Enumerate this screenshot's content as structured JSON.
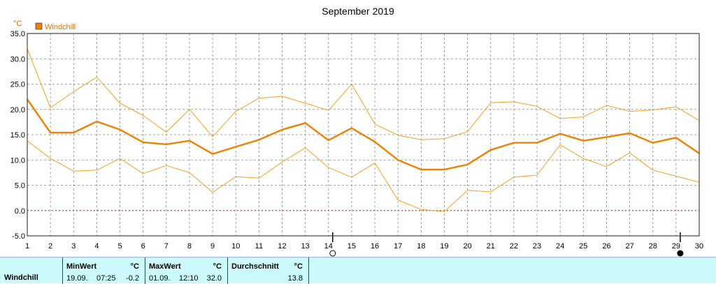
{
  "chart_data": {
    "type": "line",
    "title": "September 2019",
    "ylabel": "°C",
    "legend": [
      "Windchill"
    ],
    "ylim": [
      -5,
      35
    ],
    "yticks": [
      "-5.0",
      "0.0",
      "5.0",
      "10.0",
      "15.0",
      "20.0",
      "25.0",
      "30.0",
      "35.0"
    ],
    "x": [
      "1",
      "2",
      "3",
      "4",
      "5",
      "6",
      "7",
      "8",
      "9",
      "10",
      "11",
      "12",
      "13",
      "14",
      "15",
      "16",
      "17",
      "18",
      "19",
      "20",
      "21",
      "22",
      "23",
      "24",
      "25",
      "26",
      "27",
      "28",
      "29",
      "30"
    ],
    "series": [
      {
        "name": "Windchill max",
        "values": [
          32.0,
          20.3,
          23.5,
          26.4,
          21.2,
          18.8,
          15.5,
          20.0,
          14.6,
          19.6,
          22.2,
          22.6,
          21.2,
          19.8,
          25.0,
          17.1,
          14.9,
          14.0,
          14.2,
          15.6,
          21.3,
          21.5,
          20.6,
          18.2,
          18.5,
          20.8,
          19.6,
          19.9,
          20.5,
          17.8
        ]
      },
      {
        "name": "Windchill",
        "values": [
          22.0,
          15.4,
          15.4,
          17.6,
          16.0,
          13.5,
          13.1,
          13.8,
          11.2,
          12.6,
          14.0,
          16.0,
          17.3,
          13.9,
          16.3,
          13.6,
          10.0,
          8.1,
          8.1,
          9.1,
          12.0,
          13.4,
          13.4,
          15.2,
          13.8,
          14.5,
          15.3,
          13.4,
          14.4,
          11.3
        ]
      },
      {
        "name": "Windchill min",
        "values": [
          13.8,
          10.3,
          7.8,
          8.0,
          10.3,
          7.3,
          8.9,
          7.5,
          3.6,
          6.7,
          6.4,
          9.6,
          12.4,
          8.5,
          6.6,
          9.4,
          2.1,
          0.2,
          -0.2,
          4.0,
          3.7,
          6.6,
          7.0,
          13.0,
          10.3,
          8.7,
          11.4,
          8.0,
          6.8,
          5.6
        ]
      }
    ],
    "grid": true,
    "legend_position": "top-left",
    "colors": {
      "line": "#f08000",
      "line_thin": "#f4a020",
      "zero_line": "#cc0000",
      "grid": "#888888",
      "footer_bg": "#ccfafa"
    },
    "moon_phases": [
      {
        "day": "14",
        "icon": "full-moon-icon"
      },
      {
        "day": "29",
        "icon": "new-moon-icon"
      }
    ]
  },
  "footer": {
    "row_label": "Windchill",
    "min": {
      "header": "MinWert",
      "unit": "°C",
      "date": "19.09.",
      "time": "07:25",
      "value": "-0.2"
    },
    "max": {
      "header": "MaxWert",
      "unit": "°C",
      "date": "01.09.",
      "time": "12:10",
      "value": "32.0"
    },
    "avg": {
      "header": "Durchschnitt",
      "unit": "°C",
      "value": "13.8"
    }
  }
}
